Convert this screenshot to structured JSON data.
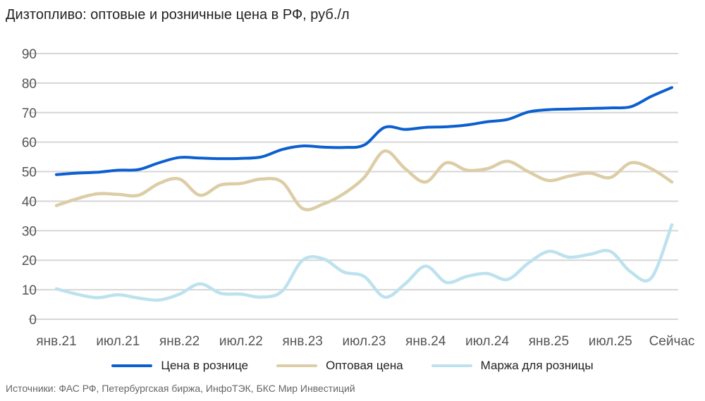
{
  "chart_data": {
    "type": "line",
    "title": "Дизтопливо: оптовые и розничные цена в РФ, руб./л",
    "source": "Источники: ФАС РФ, Петербургская биржа, ИнфоТЭК, БКС Мир Инвестиций",
    "xlabel": "",
    "ylabel": "",
    "ylim": [
      0,
      90
    ],
    "yticks": [
      0,
      10,
      20,
      30,
      40,
      50,
      60,
      70,
      80,
      90
    ],
    "grid": true,
    "legend_position": "bottom",
    "x_tick_labels": [
      "янв.21",
      "июл.21",
      "янв.22",
      "июл.22",
      "янв.23",
      "июл.23",
      "янв.24",
      "июл.24",
      "янв.25",
      "июл.25",
      "Сейчас"
    ],
    "x": [
      "янв.21",
      "мар.21",
      "май.21",
      "июл.21",
      "сен.21",
      "ноя.21",
      "янв.22",
      "мар.22",
      "май.22",
      "июл.22",
      "сен.22",
      "ноя.22",
      "янв.23",
      "мар.23",
      "май.23",
      "июл.23",
      "сен.23",
      "ноя.23",
      "янв.24",
      "мар.24",
      "май.24",
      "июл.24",
      "сен.24",
      "ноя.24",
      "янв.25",
      "мар.25",
      "май.25",
      "июл.25",
      "сен.25",
      "ноя.25",
      "Сейчас"
    ],
    "series": [
      {
        "name": "Цена в рознице",
        "color": "#0b5fd0",
        "values": [
          49,
          49.5,
          49.8,
          50.5,
          50.7,
          53,
          54.8,
          54.6,
          54.4,
          54.5,
          55,
          57.5,
          58.7,
          58.3,
          58.2,
          59,
          65,
          64.3,
          65,
          65.2,
          65.8,
          66.9,
          67.7,
          70.2,
          71,
          71.2,
          71.4,
          71.6,
          72,
          75.5,
          78.5
        ]
      },
      {
        "name": "Оптовая цена",
        "color": "#dccda6",
        "values": [
          38.5,
          40.8,
          42.5,
          42.3,
          42,
          46,
          47.5,
          42,
          45.5,
          46,
          47.5,
          46.5,
          37.5,
          39,
          42.5,
          48,
          57,
          51,
          46.5,
          53,
          50.5,
          51,
          53.5,
          50,
          47,
          48.5,
          49.5,
          48,
          53,
          51,
          46.5
        ]
      },
      {
        "name": "Маржа для розницы",
        "color": "#bde2ee",
        "values": [
          10.3,
          8.5,
          7.3,
          8.3,
          7.2,
          6.5,
          8.5,
          12,
          8.8,
          8.5,
          7.5,
          9.5,
          20,
          20.5,
          16,
          14.5,
          7.5,
          12,
          18,
          12.5,
          14.5,
          15.5,
          13.5,
          19,
          23,
          21,
          22,
          23,
          16,
          14,
          32
        ]
      }
    ]
  }
}
